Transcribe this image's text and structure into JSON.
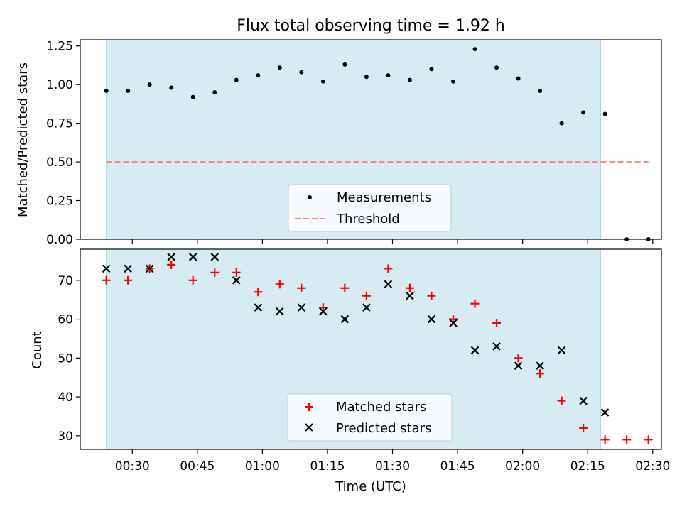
{
  "title": "Flux total observing time = 1.92 h",
  "colors": {
    "observing_band": "#add8e6",
    "measurement": "#000000",
    "threshold": "#ff7f7f",
    "matched": "#ff0000",
    "predicted": "#000000"
  },
  "chart_data": [
    {
      "type": "scatter",
      "panel": "top",
      "ylabel": "Matched/Predicted stars",
      "xlabel": "",
      "ylim": [
        0,
        1.29
      ],
      "xlim": [
        "00:18",
        "02:32"
      ],
      "y_ticks": [
        "0.00",
        "0.25",
        "0.50",
        "0.75",
        "1.00",
        "1.25"
      ],
      "shaded_interval": [
        "00:24",
        "02:18"
      ],
      "legend_position": "lower-center",
      "series": [
        {
          "name": "Measurements",
          "marker": "dot",
          "x": [
            "00:24",
            "00:29",
            "00:34",
            "00:39",
            "00:44",
            "00:49",
            "00:54",
            "00:59",
            "01:04",
            "01:09",
            "01:14",
            "01:19",
            "01:24",
            "01:29",
            "01:34",
            "01:39",
            "01:44",
            "01:49",
            "01:54",
            "01:59",
            "02:04",
            "02:09",
            "02:14",
            "02:19",
            "02:24",
            "02:29"
          ],
          "values": [
            0.96,
            0.96,
            1.0,
            0.98,
            0.92,
            0.95,
            1.03,
            1.06,
            1.11,
            1.08,
            1.02,
            1.13,
            1.05,
            1.06,
            1.03,
            1.1,
            1.02,
            1.23,
            1.11,
            1.04,
            0.96,
            0.75,
            0.82,
            0.81,
            0.0,
            0.0
          ]
        },
        {
          "name": "Threshold",
          "marker": "dashed-line",
          "x": [
            "00:24",
            "02:29"
          ],
          "values": [
            0.5,
            0.5
          ]
        }
      ]
    },
    {
      "type": "scatter",
      "panel": "bottom",
      "ylabel": "Count",
      "xlabel": "Time (UTC)",
      "ylim": [
        26.5,
        78
      ],
      "xlim": [
        "00:18",
        "02:32"
      ],
      "y_ticks": [
        "30",
        "40",
        "50",
        "60",
        "70"
      ],
      "x_ticks": [
        "00:30",
        "00:45",
        "01:00",
        "01:15",
        "01:30",
        "01:45",
        "02:00",
        "02:15",
        "02:30"
      ],
      "shaded_interval": [
        "00:24",
        "02:18"
      ],
      "legend_position": "lower-center",
      "series": [
        {
          "name": "Matched stars",
          "marker": "plus",
          "x": [
            "00:24",
            "00:29",
            "00:34",
            "00:39",
            "00:44",
            "00:49",
            "00:54",
            "00:59",
            "01:04",
            "01:09",
            "01:14",
            "01:19",
            "01:24",
            "01:29",
            "01:34",
            "01:39",
            "01:44",
            "01:49",
            "01:54",
            "01:59",
            "02:04",
            "02:09",
            "02:14",
            "02:19",
            "02:24",
            "02:29"
          ],
          "values": [
            70,
            70,
            73,
            74,
            70,
            72,
            72,
            67,
            69,
            68,
            63,
            68,
            66,
            73,
            68,
            66,
            60,
            64,
            59,
            50,
            46,
            39,
            32,
            29,
            29,
            29
          ]
        },
        {
          "name": "Predicted stars",
          "marker": "x",
          "x": [
            "00:24",
            "00:29",
            "00:34",
            "00:39",
            "00:44",
            "00:49",
            "00:54",
            "00:59",
            "01:04",
            "01:09",
            "01:14",
            "01:19",
            "01:24",
            "01:29",
            "01:34",
            "01:39",
            "01:44",
            "01:49",
            "01:54",
            "01:59",
            "02:04",
            "02:09",
            "02:14",
            "02:19"
          ],
          "values": [
            73,
            73,
            73,
            76,
            76,
            76,
            70,
            63,
            62,
            63,
            62,
            60,
            63,
            69,
            66,
            60,
            59,
            52,
            53,
            48,
            48,
            52,
            39,
            36
          ]
        }
      ]
    }
  ]
}
